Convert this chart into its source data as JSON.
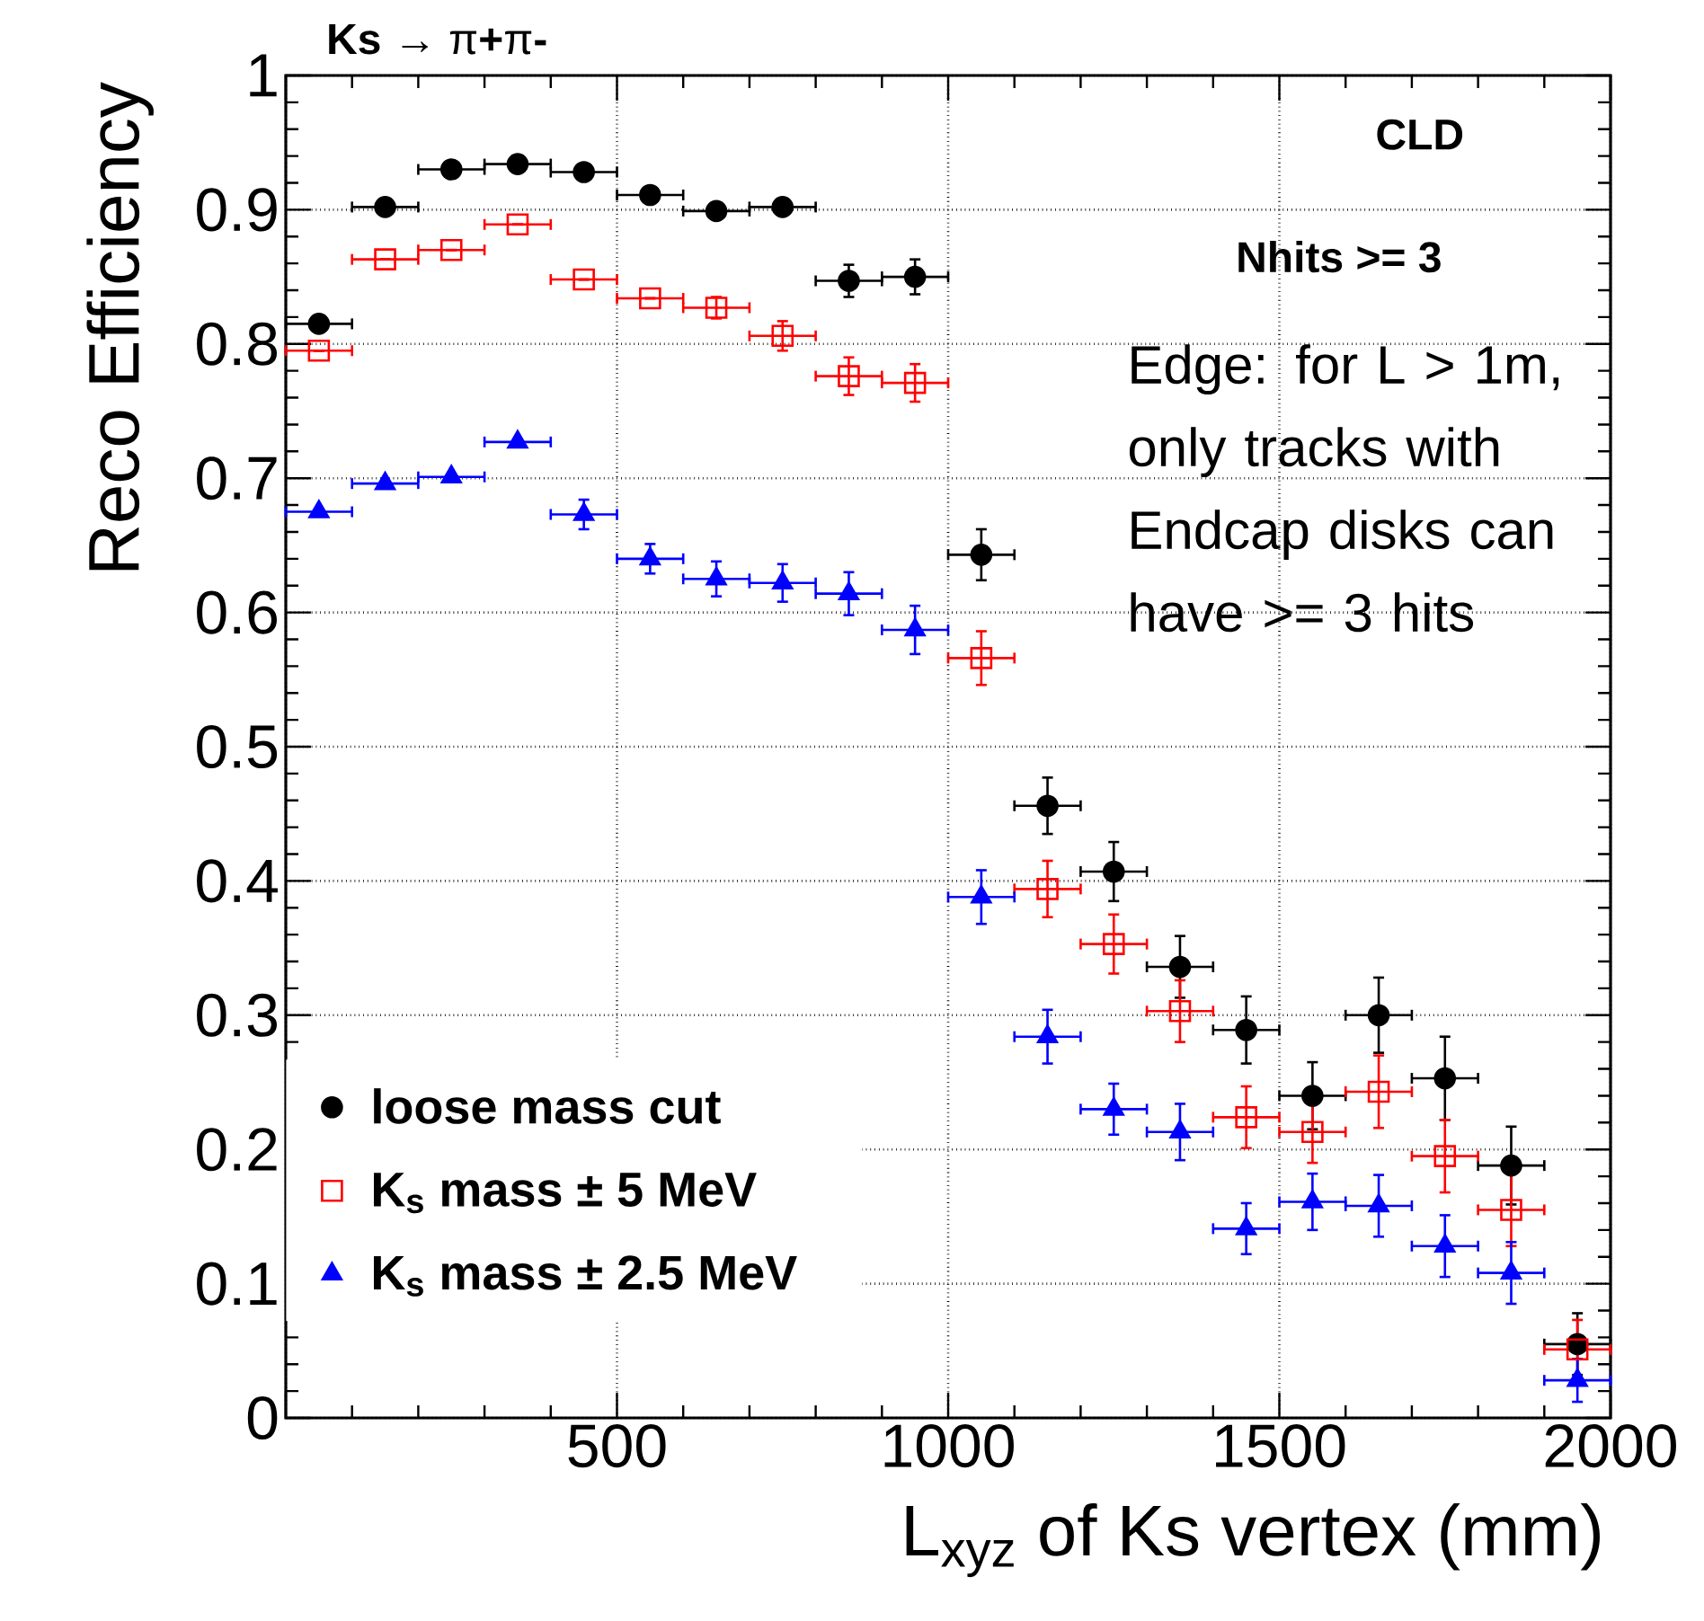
{
  "chart_data": {
    "type": "scatter",
    "title": "**Ks** → π**+**π**-**",
    "xlabel": "L$_{xyz}$ of Ks vertex (mm)",
    "ylabel": "Reco Efficiency",
    "x": [
      50,
      150,
      250,
      350,
      450,
      550,
      650,
      750,
      850,
      950,
      1050,
      1150,
      1250,
      1350,
      1450,
      1550,
      1650,
      1750,
      1850,
      1950
    ],
    "series": [
      {
        "name": "loose mass cut",
        "color": "#000000",
        "marker": "circle",
        "values": [
          0.815,
          0.902,
          0.93,
          0.934,
          0.928,
          0.911,
          0.899,
          0.902,
          0.847,
          0.85,
          0.643,
          0.456,
          0.407,
          0.336,
          0.289,
          0.24,
          0.3,
          0.253,
          0.188,
          0.055
        ],
        "errors": [
          null,
          null,
          null,
          null,
          null,
          null,
          null,
          0.006,
          0.012,
          0.013,
          0.019,
          0.021,
          0.022,
          0.023,
          0.025,
          0.025,
          0.028,
          0.031,
          0.029,
          0.023
        ],
        "xerrors": [
          50,
          50,
          50,
          50,
          50,
          50,
          50,
          50,
          50,
          50,
          50,
          50,
          50,
          50,
          50,
          50,
          50,
          50,
          50,
          50
        ]
      },
      {
        "name": "K$_{s}$ mass ± 5 MeV",
        "color": "#ff0000",
        "marker": "square",
        "values": [
          0.795,
          0.863,
          0.87,
          0.889,
          0.848,
          0.834,
          0.827,
          0.806,
          0.776,
          0.771,
          0.566,
          0.394,
          0.353,
          0.303,
          0.224,
          0.213,
          0.243,
          0.195,
          0.155,
          0.051
        ],
        "errors": [
          null,
          null,
          null,
          null,
          null,
          null,
          0.008,
          0.011,
          0.014,
          0.014,
          0.02,
          0.021,
          0.022,
          0.023,
          0.023,
          0.023,
          0.027,
          0.027,
          0.027,
          0.022
        ],
        "xerrors": [
          50,
          50,
          50,
          50,
          50,
          50,
          50,
          50,
          50,
          50,
          50,
          50,
          50,
          50,
          50,
          50,
          50,
          50,
          50,
          50
        ]
      },
      {
        "name": "K$_{s}$ mass ± 2.5 MeV",
        "color": "#0000ff",
        "marker": "triangle",
        "values": [
          0.675,
          0.696,
          0.701,
          0.727,
          0.673,
          0.64,
          0.625,
          0.622,
          0.614,
          0.587,
          0.388,
          0.284,
          0.23,
          0.213,
          0.141,
          0.161,
          0.158,
          0.128,
          0.108,
          0.028
        ],
        "errors": [
          null,
          null,
          null,
          null,
          0.011,
          0.011,
          0.013,
          0.014,
          0.016,
          0.018,
          0.02,
          0.02,
          0.019,
          0.021,
          0.019,
          0.021,
          0.023,
          0.023,
          0.023,
          0.016
        ],
        "xerrors": [
          50,
          50,
          50,
          50,
          50,
          50,
          50,
          50,
          50,
          50,
          50,
          50,
          50,
          50,
          50,
          50,
          50,
          50,
          50,
          50
        ]
      }
    ],
    "xlim": [
      0,
      2000
    ],
    "ylim": [
      0,
      1
    ],
    "xticks": [
      {
        "value": 0,
        "label": null
      },
      500,
      1000,
      1500,
      2000
    ],
    "yticks": [
      0,
      0.1,
      0.2,
      0.3,
      0.4,
      0.5,
      0.6,
      0.7,
      0.8,
      0.9,
      1
    ],
    "grid": true,
    "legend": "bottom left",
    "annotations": [
      "CLD",
      "Nhits >= 3",
      "Edge: for L > 1m, only tracks with Endcap disks can have >= 3 hits"
    ]
  }
}
